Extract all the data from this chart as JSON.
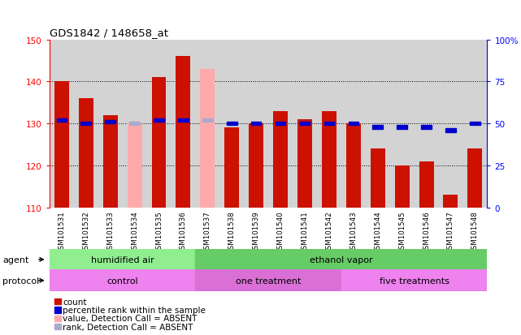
{
  "title": "GDS1842 / 148658_at",
  "samples": [
    "GSM101531",
    "GSM101532",
    "GSM101533",
    "GSM101534",
    "GSM101535",
    "GSM101536",
    "GSM101537",
    "GSM101538",
    "GSM101539",
    "GSM101540",
    "GSM101541",
    "GSM101542",
    "GSM101543",
    "GSM101544",
    "GSM101545",
    "GSM101546",
    "GSM101547",
    "GSM101548"
  ],
  "count_values": [
    140,
    136,
    132,
    null,
    141,
    146,
    null,
    129,
    130,
    133,
    131,
    133,
    130,
    124,
    120,
    121,
    113,
    124
  ],
  "count_absent": [
    null,
    null,
    null,
    130,
    null,
    null,
    143,
    null,
    null,
    null,
    null,
    null,
    null,
    null,
    null,
    null,
    null,
    null
  ],
  "rank_values_pct": [
    52,
    50,
    51,
    null,
    52,
    52,
    null,
    50,
    50,
    50,
    50,
    50,
    50,
    48,
    48,
    48,
    46,
    50
  ],
  "rank_absent_pct": [
    null,
    null,
    null,
    50,
    null,
    null,
    52,
    null,
    null,
    null,
    null,
    null,
    null,
    null,
    null,
    null,
    null,
    null
  ],
  "ylim_left": [
    110,
    150
  ],
  "ylim_right": [
    0,
    100
  ],
  "yticks_left": [
    110,
    120,
    130,
    140,
    150
  ],
  "yticks_right": [
    0,
    25,
    50,
    75,
    100
  ],
  "ytick_labels_left": [
    "110",
    "120",
    "130",
    "140",
    "150"
  ],
  "ytick_labels_right": [
    "0",
    "25",
    "50",
    "75",
    "100%"
  ],
  "agent_groups": [
    {
      "label": "humidified air",
      "start": 0,
      "end": 6,
      "color": "#90ee90"
    },
    {
      "label": "ethanol vapor",
      "start": 6,
      "end": 18,
      "color": "#66cc66"
    }
  ],
  "protocol_groups": [
    {
      "label": "control",
      "start": 0,
      "end": 6,
      "color": "#ee82ee"
    },
    {
      "label": "one treatment",
      "start": 6,
      "end": 12,
      "color": "#da70d6"
    },
    {
      "label": "five treatments",
      "start": 12,
      "end": 18,
      "color": "#ee82ee"
    }
  ],
  "bar_color_normal": "#cc1100",
  "bar_color_absent": "#ffaaaa",
  "rank_color_normal": "#0000cc",
  "rank_color_absent": "#aaaacc",
  "bg_color": "#d3d3d3",
  "base_value": 110
}
